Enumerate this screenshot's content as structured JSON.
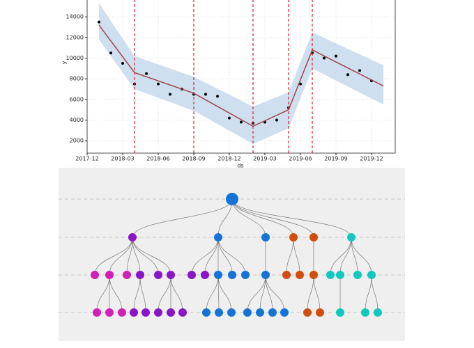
{
  "chart_data": {
    "type": "forecast",
    "x_label": "ds",
    "y_label": "y",
    "xlim": [
      "2017-12",
      "2020-02"
    ],
    "xticks": [
      "2017-12",
      "2018-03",
      "2018-06",
      "2018-09",
      "2018-12",
      "2019-03",
      "2019-06",
      "2019-09",
      "2019-12"
    ],
    "ylim": [
      800,
      15700
    ],
    "yticks": [
      2000,
      4000,
      6000,
      8000,
      10000,
      12000,
      14000
    ],
    "grid": true,
    "points": {
      "color": "#000000",
      "x": [
        "2018-01",
        "2018-02",
        "2018-03",
        "2018-04",
        "2018-05",
        "2018-06",
        "2018-07",
        "2018-08",
        "2018-09",
        "2018-10",
        "2018-11",
        "2018-12",
        "2019-01",
        "2019-02",
        "2019-03",
        "2019-04",
        "2019-05",
        "2019-06",
        "2019-07",
        "2019-08",
        "2019-09",
        "2019-10",
        "2019-11",
        "2019-12"
      ],
      "values": [
        13500,
        10500,
        9500,
        7500,
        8500,
        7500,
        6500,
        7000,
        6500,
        6500,
        6300,
        4200,
        3800,
        3700,
        3800,
        4000,
        5200,
        7500,
        10500,
        10000,
        10200,
        8400,
        8800,
        7800
      ]
    },
    "trend": {
      "color": "#a0464e",
      "x": [
        "2018-01",
        "2018-04",
        "2018-09",
        "2019-02",
        "2019-05",
        "2019-07",
        "2020-01"
      ],
      "values": [
        13200,
        8600,
        6600,
        3400,
        5000,
        10800,
        7300
      ],
      "band_color": "#c6d9ec",
      "lower": [
        11800,
        7000,
        4900,
        1700,
        3200,
        9000,
        5500
      ],
      "upper": [
        15300,
        10200,
        8200,
        5300,
        6700,
        12500,
        9300
      ]
    },
    "changepoints": {
      "color": "#d62728",
      "x": [
        "2018-04",
        "2018-09",
        "2019-02",
        "2019-05",
        "2019-07"
      ]
    }
  }
}
